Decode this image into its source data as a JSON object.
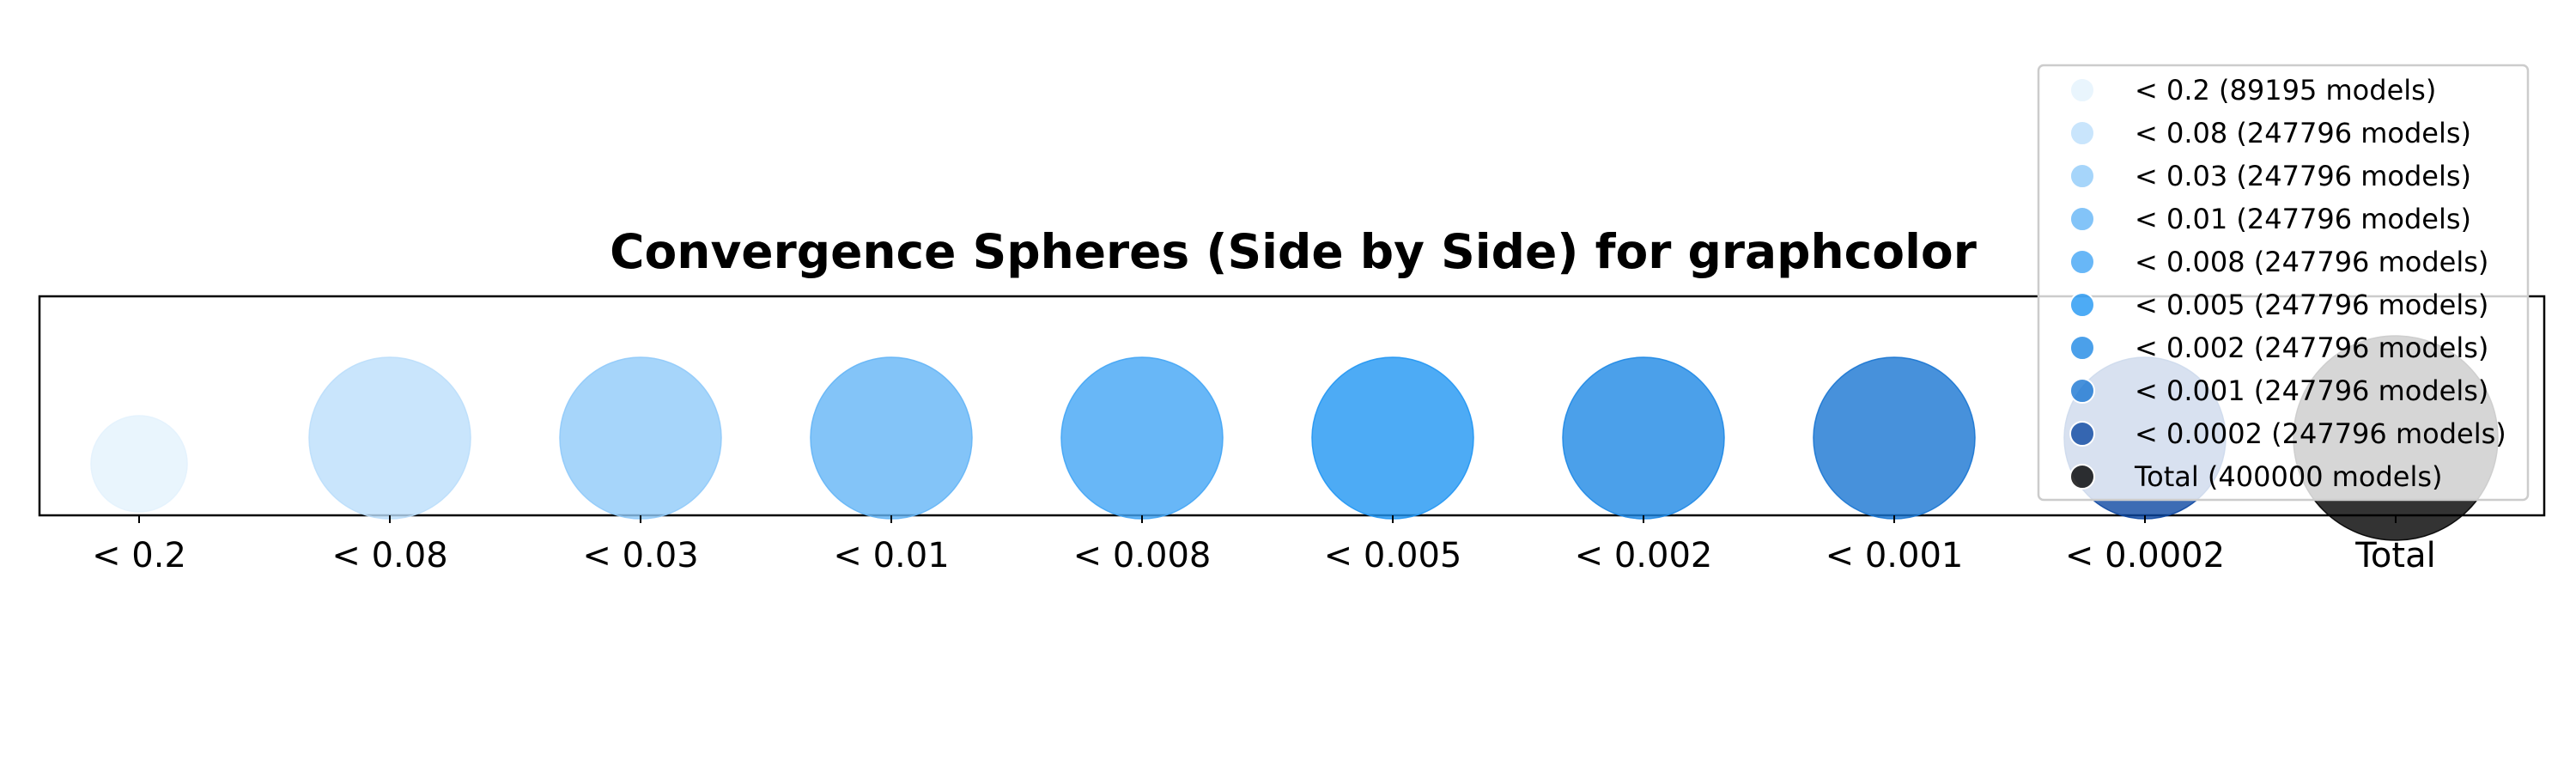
{
  "chart_data": {
    "type": "scatter",
    "title": "Convergence Spheres (Side by Side) for graphcolor",
    "xlabel": "",
    "ylabel": "",
    "grid": false,
    "legend_position": "top-right",
    "categories": [
      "< 0.2",
      "< 0.08",
      "< 0.03",
      "< 0.01",
      "< 0.008",
      "< 0.005",
      "< 0.002",
      "< 0.001",
      "< 0.0002",
      "Total"
    ],
    "values": [
      89195,
      247796,
      247796,
      247796,
      247796,
      247796,
      247796,
      247796,
      247796,
      400000
    ],
    "colors": [
      "#e3f2fd",
      "#bbdefb",
      "#90caf9",
      "#64b5f6",
      "#42a5f5",
      "#2196f3",
      "#1e88e5",
      "#1976d2",
      "#0d47a1",
      "#000000"
    ],
    "legend": [
      "< 0.2 (89195 models)",
      "< 0.08 (247796 models)",
      "< 0.03 (247796 models)",
      "< 0.01 (247796 models)",
      "< 0.008 (247796 models)",
      "< 0.005 (247796 models)",
      "< 0.002 (247796 models)",
      "< 0.001 (247796 models)",
      "< 0.0002 (247796 models)",
      "Total (400000 models)"
    ]
  }
}
